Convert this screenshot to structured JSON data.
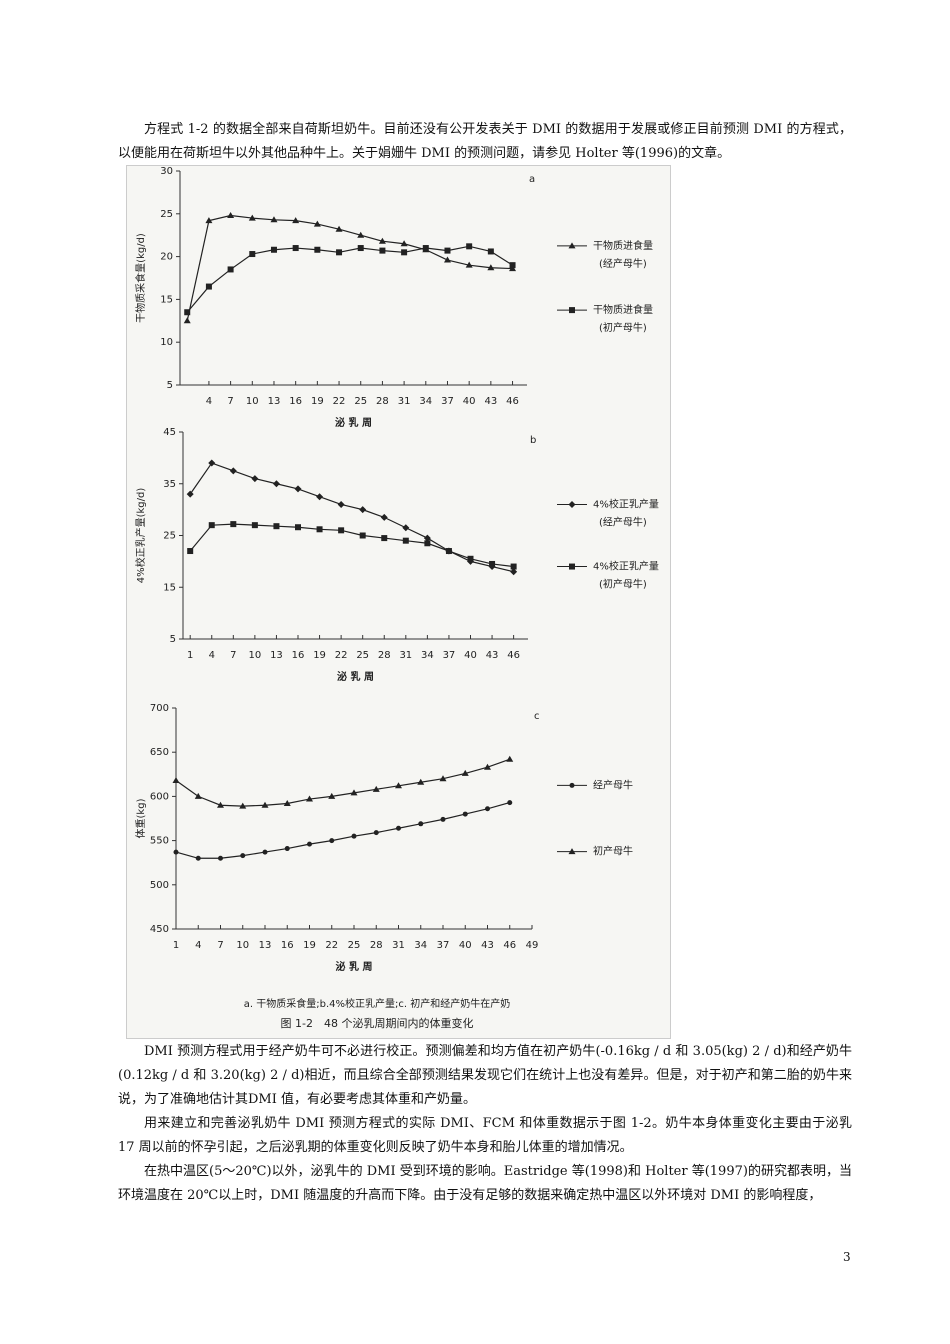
{
  "paragraphs": [
    "方程式 1-2 的数据全部来自荷斯坦奶牛。目前还没有公开发表关于 DMI 的数据用于发展或修正目前预测 DMI 的方程式，以便能用在荷斯坦牛以外其他品种牛上。关于娟姗牛 DMI 的预测问题，请参见 Holter 等(1996)的文章。",
    "DMI 预测方程式用于经产奶牛可不必进行校正。预测偏差和均方值在初产奶牛(-0.16kg / d 和 3.05(kg) 2 / d)和经产奶牛(0.12kg / d 和 3.20(kg) 2 / d)相近，而且综合全部预测结果发现它们在统计上也没有差异。但是，对于初产和第二胎的奶牛来说，为了准确地估计其DMI 值，有必要考虑其体重和产奶量。",
    "用来建立和完善泌乳奶牛 DMI 预测方程式的实际 DMI、FCM 和体重数据示于图 1-2。奶牛本身体重变化主要由于泌乳 17 周以前的怀孕引起，之后泌乳期的体重变化则反映了奶牛本身和胎儿体重的增加情况。",
    "在热中温区(5～20℃)以外，泌乳牛的 DMI 受到环境的影响。Eastridge 等(1998)和 Holter 等(1997)的研究都表明，当环境温度在 20℃以上时，DMI 随温度的升高而下降。由于没有足够的数据来确定热中温区以外环境对 DMI 的影响程度，"
  ],
  "chart_data": [
    {
      "type": "line",
      "panel": "a",
      "y_label": "干物质采食量(kg/d)",
      "x_label": "泌 乳 周",
      "x": [
        1,
        4,
        7,
        10,
        13,
        16,
        19,
        22,
        25,
        28,
        31,
        34,
        37,
        40,
        43,
        46
      ],
      "series": [
        {
          "name": "干物质进食量",
          "group": "(经产母牛)",
          "marker": "triangle",
          "color": "#222",
          "values": [
            12.5,
            24.2,
            24.8,
            24.5,
            24.3,
            24.2,
            23.8,
            23.2,
            22.5,
            21.8,
            21.5,
            20.8,
            19.6,
            19.0,
            18.7,
            18.6
          ]
        },
        {
          "name": "干物质进食量",
          "group": "(初产母牛)",
          "marker": "square",
          "color": "#222",
          "values": [
            13.5,
            16.5,
            18.5,
            20.3,
            20.8,
            21.0,
            20.8,
            20.5,
            21.0,
            20.7,
            20.5,
            21.0,
            20.7,
            21.2,
            20.6,
            19.0
          ]
        }
      ],
      "xlim": [
        0,
        48
      ],
      "xticks": [
        4,
        7,
        10,
        13,
        16,
        19,
        22,
        25,
        28,
        31,
        34,
        37,
        40,
        43,
        46
      ],
      "ylim": [
        5,
        30
      ],
      "yticks": [
        5,
        10,
        15,
        20,
        25,
        30
      ]
    },
    {
      "type": "line",
      "panel": "b",
      "y_label": "4%校正乳产量(kg/d)",
      "x_label": "泌 乳 周",
      "x": [
        1,
        4,
        7,
        10,
        13,
        16,
        19,
        22,
        25,
        28,
        31,
        34,
        37,
        40,
        43,
        46
      ],
      "series": [
        {
          "name": "4%校正乳产量",
          "group": "(经产母牛)",
          "marker": "diamond",
          "color": "#222",
          "values": [
            33,
            39,
            37.5,
            36,
            35,
            34,
            32.5,
            31,
            30,
            28.5,
            26.5,
            24.5,
            22,
            20,
            19,
            18
          ]
        },
        {
          "name": "4%校正乳产量",
          "group": "(初产母牛)",
          "marker": "square",
          "color": "#222",
          "values": [
            22,
            27,
            27.2,
            27,
            26.8,
            26.6,
            26.2,
            26,
            25,
            24.5,
            24,
            23.5,
            22,
            20.5,
            19.5,
            19
          ]
        }
      ],
      "xlim": [
        0,
        48
      ],
      "xticks": [
        1,
        4,
        7,
        10,
        13,
        16,
        19,
        22,
        25,
        28,
        31,
        34,
        37,
        40,
        43,
        46
      ],
      "ylim": [
        5,
        45
      ],
      "yticks": [
        5,
        15,
        25,
        35,
        45
      ]
    },
    {
      "type": "line",
      "panel": "c",
      "y_label": "体重(kg)",
      "x_label": "泌 乳 周",
      "x": [
        1,
        4,
        7,
        10,
        13,
        16,
        19,
        22,
        25,
        28,
        31,
        34,
        37,
        40,
        43,
        46
      ],
      "series": [
        {
          "name": "经产母牛",
          "marker": "circle",
          "color": "#222",
          "values": [
            537,
            530,
            530,
            533,
            537,
            541,
            546,
            550,
            555,
            559,
            564,
            569,
            574,
            580,
            586,
            593
          ]
        },
        {
          "name": "初产母牛",
          "marker": "triangle",
          "color": "#222",
          "values": [
            618,
            600,
            590,
            589,
            590,
            592,
            597,
            600,
            604,
            608,
            612,
            616,
            620,
            626,
            633,
            642
          ]
        }
      ],
      "xlim": [
        1,
        49
      ],
      "xticks": [
        1,
        4,
        7,
        10,
        13,
        16,
        19,
        22,
        25,
        28,
        31,
        34,
        37,
        40,
        43,
        46,
        49
      ],
      "ylim": [
        450,
        700
      ],
      "yticks": [
        450,
        500,
        550,
        600,
        650,
        700
      ]
    }
  ],
  "figure_note": "a. 干物质采食量;b.4%校正乳产量;c. 初产和经产奶牛在产奶",
  "figure_caption": "图 1-2　48 个泌乳周期间内的体重变化",
  "page_number": "3"
}
